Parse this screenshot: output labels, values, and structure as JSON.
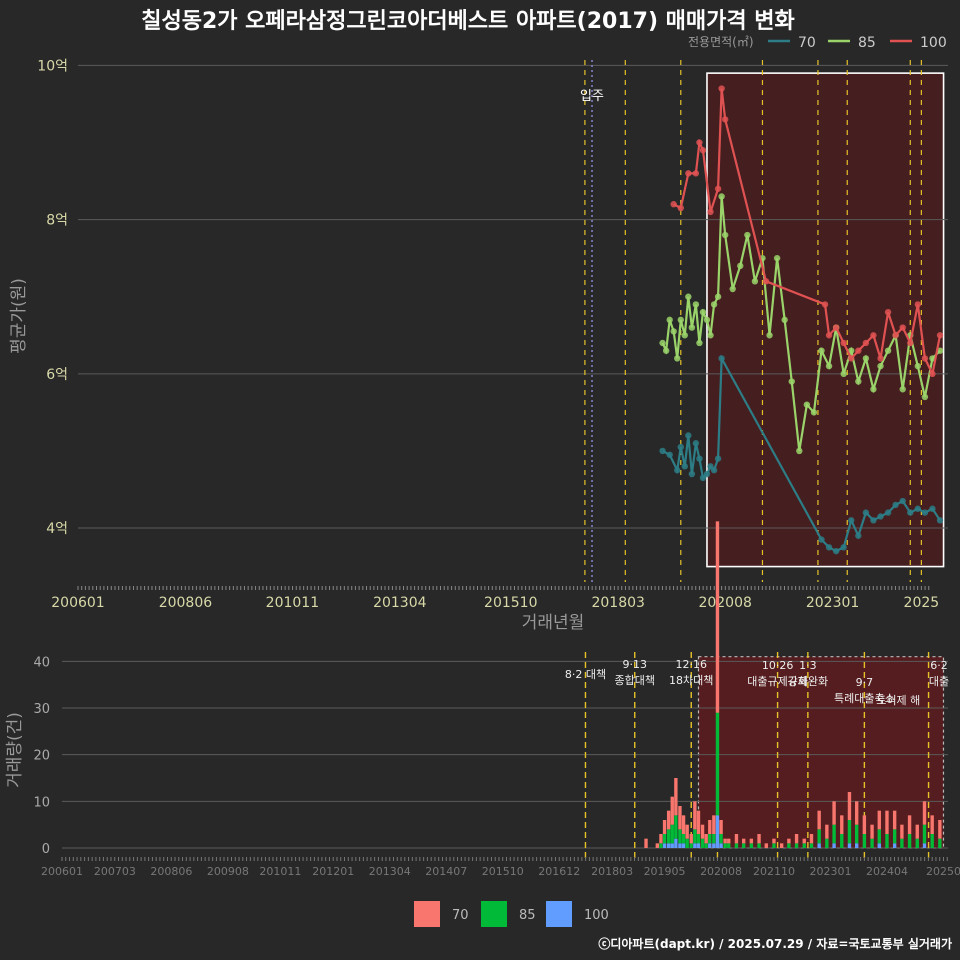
{
  "title": "칠성동2가 오페라삼정그린코아더베스트 아파트(2017) 매매가격 변화",
  "footer": "ⓒ디아파트(dapt.kr) / 2025.07.29 / 자료=국토교통부 실거래가",
  "colors": {
    "background": "#282828",
    "grid": "#5a5a5a",
    "policy_line": "#e6c229",
    "move_in_line": "#8c8cd8",
    "highlight_fill": "#4a1c1e",
    "s70_line": "#2d7d86",
    "s85_line": "#9ad36a",
    "s100_line": "#e05252",
    "bar70": "#f8766d",
    "bar85": "#00ba38",
    "bar100": "#619cff"
  },
  "chart_data": [
    {
      "type": "line",
      "title": "칠성동2가 오페라삼정그린코아더베스트 아파트(2017) 매매가격 변화",
      "xlabel": "거래년월",
      "ylabel": "평균가(원)",
      "xlim": [
        2006.0,
        2025.6
      ],
      "ylim": [
        3.3,
        10.2
      ],
      "yticks": [
        {
          "value": 4,
          "label": "4억"
        },
        {
          "value": 6,
          "label": "6억"
        },
        {
          "value": 8,
          "label": "8억"
        },
        {
          "value": 10,
          "label": "10억"
        }
      ],
      "xticks": [
        {
          "value": 2006.0,
          "label": "200601"
        },
        {
          "value": 2008.42,
          "label": "200806"
        },
        {
          "value": 2010.83,
          "label": "201011"
        },
        {
          "value": 2013.25,
          "label": "201304"
        },
        {
          "value": 2015.75,
          "label": "201510"
        },
        {
          "value": 2018.17,
          "label": "201803"
        },
        {
          "value": 2020.58,
          "label": "202008"
        },
        {
          "value": 2023.0,
          "label": "202301"
        },
        {
          "value": 2025.0,
          "label": "2025"
        }
      ],
      "legend_title": "전용면적(㎡)",
      "legend": [
        "70",
        "85",
        "100"
      ],
      "move_in": {
        "x": 2017.58,
        "label": "입주"
      },
      "policy_lines": [
        2017.42,
        2018.33,
        2019.58,
        2021.42,
        2022.67,
        2023.33,
        2024.75,
        2025.0
      ],
      "highlight": {
        "x0": 2020.17,
        "x1": 2025.5,
        "y0": 3.5,
        "y1": 9.9
      },
      "series": [
        {
          "name": "70",
          "x": [
            2019.17,
            2019.33,
            2019.5,
            2019.58,
            2019.67,
            2019.75,
            2019.83,
            2019.92,
            2020.0,
            2020.08,
            2020.17,
            2020.25,
            2020.33,
            2020.42,
            2020.5,
            2022.75,
            2022.92,
            2023.08,
            2023.25,
            2023.42,
            2023.58,
            2023.75,
            2023.92,
            2024.08,
            2024.25,
            2024.42,
            2024.58,
            2024.75,
            2024.92,
            2025.08,
            2025.25,
            2025.42
          ],
          "y": [
            5.0,
            4.95,
            4.75,
            5.05,
            4.8,
            5.2,
            4.7,
            5.1,
            4.9,
            4.65,
            4.7,
            4.8,
            4.75,
            4.9,
            6.2,
            3.85,
            3.75,
            3.7,
            3.75,
            4.1,
            3.9,
            4.2,
            4.1,
            4.15,
            4.2,
            4.3,
            4.35,
            4.2,
            4.25,
            4.2,
            4.25,
            4.1
          ]
        },
        {
          "name": "85",
          "x": [
            2019.17,
            2019.25,
            2019.33,
            2019.42,
            2019.5,
            2019.58,
            2019.67,
            2019.75,
            2019.83,
            2019.92,
            2020.0,
            2020.08,
            2020.17,
            2020.25,
            2020.33,
            2020.42,
            2020.5,
            2020.58,
            2020.75,
            2020.92,
            2021.08,
            2021.25,
            2021.42,
            2021.58,
            2021.75,
            2021.92,
            2022.08,
            2022.25,
            2022.42,
            2022.58,
            2022.75,
            2022.92,
            2023.08,
            2023.25,
            2023.42,
            2023.58,
            2023.75,
            2023.92,
            2024.08,
            2024.25,
            2024.42,
            2024.58,
            2024.75,
            2024.92,
            2025.08,
            2025.25,
            2025.42
          ],
          "y": [
            6.4,
            6.3,
            6.7,
            6.55,
            6.2,
            6.7,
            6.5,
            7.0,
            6.6,
            6.9,
            6.4,
            6.8,
            6.7,
            6.5,
            6.9,
            7.0,
            8.3,
            7.8,
            7.1,
            7.4,
            7.8,
            7.2,
            7.5,
            6.5,
            7.5,
            6.7,
            5.9,
            5.0,
            5.6,
            5.5,
            6.3,
            6.1,
            6.6,
            6.0,
            6.3,
            5.9,
            6.2,
            5.8,
            6.1,
            6.3,
            6.5,
            5.8,
            6.5,
            6.1,
            5.7,
            6.2,
            6.3
          ]
        },
        {
          "name": "100",
          "x": [
            2019.42,
            2019.58,
            2019.75,
            2019.92,
            2020.0,
            2020.08,
            2020.25,
            2020.42,
            2020.5,
            2020.58,
            2021.5,
            2022.83,
            2022.92,
            2023.08,
            2023.25,
            2023.42,
            2023.58,
            2023.75,
            2023.92,
            2024.08,
            2024.25,
            2024.42,
            2024.58,
            2024.75,
            2024.92,
            2025.08,
            2025.25,
            2025.42
          ],
          "y": [
            8.2,
            8.15,
            8.6,
            8.6,
            9.0,
            8.9,
            8.1,
            8.4,
            9.7,
            9.3,
            7.2,
            6.9,
            6.5,
            6.6,
            6.4,
            6.2,
            6.3,
            6.4,
            6.5,
            6.2,
            6.8,
            6.5,
            6.6,
            6.4,
            6.9,
            6.2,
            6.0,
            6.5
          ]
        }
      ]
    },
    {
      "type": "bar",
      "ylabel": "거래량(건)",
      "ylim": [
        0,
        42
      ],
      "yticks": [
        0,
        10,
        20,
        30,
        40
      ],
      "xticks": [
        {
          "value": 2006.0,
          "label": "200601"
        },
        {
          "value": 2007.17,
          "label": "200703"
        },
        {
          "value": 2008.42,
          "label": "200806"
        },
        {
          "value": 2009.67,
          "label": "200908"
        },
        {
          "value": 2010.83,
          "label": "201011"
        },
        {
          "value": 2012.0,
          "label": "201201"
        },
        {
          "value": 2013.25,
          "label": "201304"
        },
        {
          "value": 2014.5,
          "label": "201407"
        },
        {
          "value": 2015.75,
          "label": "201510"
        },
        {
          "value": 2017.0,
          "label": "201612"
        },
        {
          "value": 2018.17,
          "label": "201803"
        },
        {
          "value": 2019.33,
          "label": "201905"
        },
        {
          "value": 2020.58,
          "label": "202008"
        },
        {
          "value": 2021.75,
          "label": "202110"
        },
        {
          "value": 2023.0,
          "label": "202301"
        },
        {
          "value": 2024.25,
          "label": "202404"
        },
        {
          "value": 2025.5,
          "label": "20250"
        }
      ],
      "legend": [
        "70",
        "85",
        "100"
      ],
      "policy_lines": [
        2017.58,
        2018.67,
        2019.92,
        2020.5,
        2021.83,
        2022.5,
        2023.75,
        2025.17
      ],
      "annotations": [
        {
          "x": 2017.58,
          "lines": [
            "8·2 대책"
          ]
        },
        {
          "x": 2018.67,
          "lines": [
            "9·13",
            "종합대책"
          ]
        },
        {
          "x": 2019.92,
          "lines": [
            "12·16",
            "18차대책"
          ]
        },
        {
          "x": 2021.83,
          "lines": [
            "10·26",
            "대출규제강화"
          ]
        },
        {
          "x": 2022.5,
          "lines": [
            "1·3",
            "규제완화"
          ]
        },
        {
          "x": 2023.75,
          "lines": [
            "9·7",
            "특례대출축소"
          ]
        },
        {
          "x": 2024.5,
          "lines": [
            "토허제 해"
          ]
        },
        {
          "x": 2025.4,
          "lines": [
            "6·2",
            "대출"
          ]
        }
      ],
      "highlight": {
        "x0": 2020.08,
        "x1": 2025.5,
        "y_top": 41
      },
      "x": [
        2018.92,
        2019.17,
        2019.25,
        2019.33,
        2019.42,
        2019.5,
        2019.58,
        2019.67,
        2019.75,
        2019.83,
        2019.92,
        2020.0,
        2020.08,
        2020.17,
        2020.25,
        2020.33,
        2020.42,
        2020.5,
        2020.58,
        2020.67,
        2020.75,
        2020.92,
        2021.08,
        2021.25,
        2021.42,
        2021.58,
        2021.75,
        2021.92,
        2022.08,
        2022.25,
        2022.42,
        2022.58,
        2022.75,
        2022.92,
        2023.08,
        2023.25,
        2023.42,
        2023.58,
        2023.75,
        2023.92,
        2024.08,
        2024.25,
        2024.42,
        2024.58,
        2024.75,
        2024.92,
        2025.08,
        2025.25,
        2025.42
      ],
      "series": [
        {
          "name": "70",
          "values": [
            2,
            1,
            2,
            3,
            4,
            6,
            8,
            5,
            4,
            3,
            2,
            6,
            5,
            3,
            2,
            3,
            4,
            41,
            3,
            1,
            1,
            2,
            1,
            1,
            2,
            1,
            1,
            1,
            1,
            2,
            1,
            2,
            4,
            3,
            5,
            4,
            6,
            5,
            4,
            3,
            4,
            5,
            4,
            3,
            4,
            3,
            5,
            4,
            4
          ]
        },
        {
          "name": "85",
          "values": [
            0,
            0,
            1,
            2,
            3,
            4,
            5,
            3,
            2,
            2,
            1,
            3,
            2,
            2,
            1,
            2,
            2,
            22,
            2,
            1,
            1,
            1,
            1,
            1,
            1,
            0,
            1,
            0,
            1,
            1,
            1,
            1,
            3,
            2,
            4,
            3,
            5,
            4,
            3,
            2,
            3,
            3,
            3,
            2,
            3,
            2,
            4,
            3,
            2
          ]
        },
        {
          "name": "100",
          "values": [
            0,
            0,
            0,
            1,
            1,
            1,
            2,
            1,
            1,
            0,
            0,
            1,
            1,
            0,
            0,
            1,
            1,
            7,
            1,
            0,
            0,
            0,
            0,
            0,
            0,
            0,
            0,
            0,
            0,
            0,
            0,
            0,
            1,
            0,
            1,
            0,
            1,
            1,
            0,
            0,
            1,
            0,
            1,
            0,
            0,
            0,
            1,
            0,
            0
          ]
        }
      ]
    }
  ]
}
